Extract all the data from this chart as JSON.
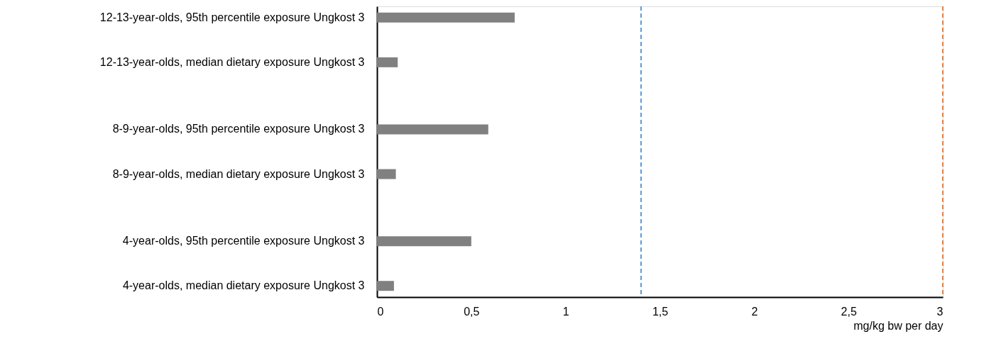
{
  "chart_data": {
    "type": "bar",
    "orientation": "horizontal",
    "categories": [
      "12-13-year-olds, 95th percentile exposure Ungkost 3",
      null,
      "12-13-year-olds, median dietary exposure Ungkost 3",
      null,
      null,
      "8-9-year-olds, 95th percentile exposure Ungkost 3",
      null,
      "8-9-year-olds, median dietary exposure Ungkost 3",
      null,
      null,
      "4-year-olds, 95th percentile exposure Ungkost 3",
      null,
      "4-year-olds, median dietary exposure Ungkost 3"
    ],
    "values": [
      0.73,
      null,
      0.11,
      null,
      null,
      0.59,
      null,
      0.1,
      null,
      null,
      0.5,
      null,
      0.09
    ],
    "color": "#808080",
    "xlabel": "mg/kg bw per day",
    "xlim": [
      0,
      3
    ],
    "xticks": [
      0,
      {
        "value": 0.5,
        "label": "0,5"
      },
      1,
      {
        "value": 1.5,
        "label": "1,5"
      },
      2,
      {
        "value": 2.5,
        "label": "2,5"
      },
      3
    ],
    "ref_lines": [
      {
        "axis": "x",
        "value": 1.4,
        "color": "#5b9bd5",
        "line_style": "dashed"
      },
      {
        "axis": "x",
        "value": 3,
        "color": "#ed7d31",
        "line_style": "dashed"
      }
    ],
    "grid": false
  }
}
